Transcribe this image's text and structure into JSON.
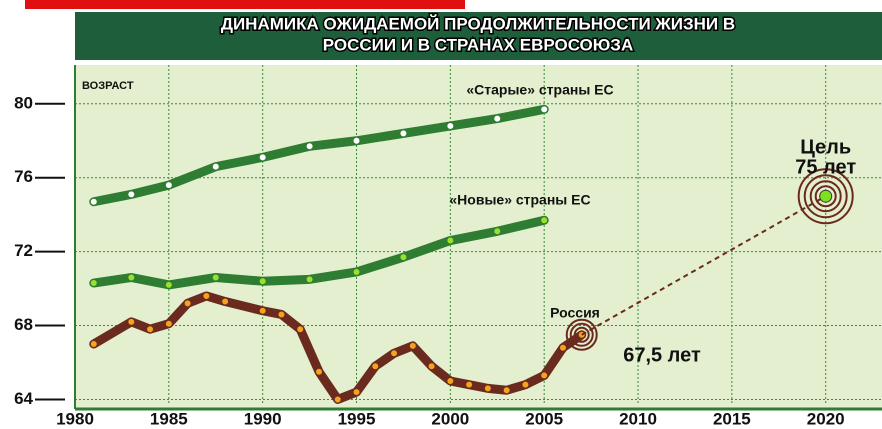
{
  "chart_data": {
    "type": "line",
    "title": [
      "ДИНАМИКА ОЖИДАЕМОЙ ПРОДОЛЖИТЕЛЬНОСТИ ЖИЗНИ В",
      "РОССИИ И В СТРАНАХ ЕВРОСОЮЗА"
    ],
    "y_label": "ВОЗРАСТ",
    "xlim": [
      1980,
      2023
    ],
    "xticks": [
      1980,
      1985,
      1990,
      1995,
      2000,
      2005,
      2010,
      2015,
      2020
    ],
    "ylim": [
      63.7,
      82.1
    ],
    "yticks": [
      64,
      68,
      72,
      76,
      80
    ],
    "grid": true,
    "series": [
      {
        "name": "«Старые» страны ЕС",
        "color": "#2e7d32",
        "x": [
          1981,
          1983,
          1985,
          1987.5,
          1990,
          1992.5,
          1995,
          1997.5,
          2000,
          2002.5,
          2005
        ],
        "values": [
          74.7,
          75.1,
          75.6,
          76.6,
          77.1,
          77.7,
          78.0,
          78.4,
          78.8,
          79.2,
          79.7
        ]
      },
      {
        "name": "«Новые» страны ЕС",
        "color": "#2e7d32",
        "x": [
          1981,
          1983,
          1985,
          1987.5,
          1990,
          1992.5,
          1995,
          1997.5,
          2000,
          2002.5,
          2005
        ],
        "values": [
          70.3,
          70.6,
          70.2,
          70.6,
          70.4,
          70.5,
          70.9,
          71.7,
          72.6,
          73.1,
          73.7
        ]
      },
      {
        "name": "Россия",
        "color": "#6b2a1e",
        "x": [
          1981,
          1983,
          1984,
          1985,
          1986,
          1987,
          1988,
          1990,
          1991,
          1992,
          1993,
          1994,
          1995,
          1996,
          1997,
          1998,
          1999,
          2000,
          2001,
          2002,
          2003,
          2004,
          2005,
          2006,
          2007
        ],
        "values": [
          67.0,
          68.2,
          67.8,
          68.1,
          69.2,
          69.6,
          69.3,
          68.8,
          68.6,
          67.8,
          65.5,
          64.0,
          64.4,
          65.8,
          66.5,
          66.9,
          65.8,
          65.0,
          64.8,
          64.6,
          64.5,
          64.8,
          65.3,
          66.8,
          67.5
        ]
      }
    ],
    "current_label": "67,5 лет",
    "target": {
      "x": 2020,
      "value": 75,
      "label": [
        "Цель",
        "75 лет"
      ]
    }
  }
}
